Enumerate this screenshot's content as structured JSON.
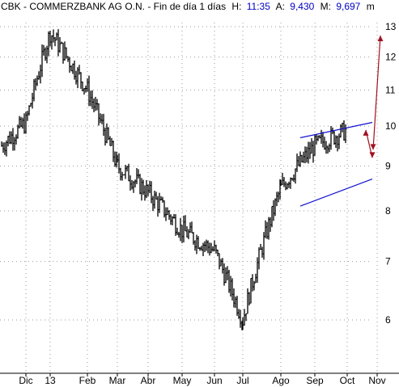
{
  "header": {
    "title": "CBK - COMMERZBANK AG O.N. - Fin de día 1 días",
    "h_label": "H:",
    "h_value": "11:35",
    "a_label": "A:",
    "a_value": "9,430",
    "m_label": "M:",
    "m_value": "9,697",
    "extra": "m"
  },
  "colors": {
    "price": "#000000",
    "channel": "#1010d0",
    "arrow": "#a01020",
    "grid": "#9a9a9a"
  },
  "chart_data": {
    "type": "bar",
    "subtype": "ohlc-price-chart",
    "title": "CBK - COMMERZBANK AG O.N.",
    "ylim": [
      5.4,
      13.2
    ],
    "y_scale": "log",
    "y_ticks": [
      6,
      7,
      8,
      9,
      10,
      11,
      12,
      13
    ],
    "x_ticks": [
      "Dic",
      "13",
      "Feb",
      "Mar",
      "Abr",
      "May",
      "Jun",
      "Jul",
      "Ago",
      "Sep",
      "Oct",
      "Nov"
    ],
    "grid": true,
    "series": [
      {
        "values": [
          {
            "x": "Nov",
            "y": 9.5
          },
          {
            "x": "Dic",
            "y": 10.1
          },
          {
            "x": "13",
            "y": 12.8
          },
          {
            "x": "Feb",
            "y": 11.0
          },
          {
            "x": "Mar",
            "y": 9.0
          },
          {
            "x": "Abr",
            "y": 8.4
          },
          {
            "x": "May",
            "y": 7.6
          },
          {
            "x": "Jun",
            "y": 7.2
          },
          {
            "x": "Jul",
            "y": 6.0
          },
          {
            "x": "Ago",
            "y": 8.5
          },
          {
            "x": "Sep",
            "y": 9.5
          },
          {
            "x": "Oct",
            "y": 9.9
          }
        ]
      }
    ],
    "annotations": [
      {
        "type": "trend-channel",
        "upper": [
          9.7,
          10.1
        ],
        "lower": [
          8.1,
          8.7
        ]
      },
      {
        "type": "projection-arrow",
        "from": 9.6,
        "to": 12.7
      },
      {
        "type": "projection-arrow",
        "from": 9.9,
        "to": 9.2
      }
    ]
  }
}
